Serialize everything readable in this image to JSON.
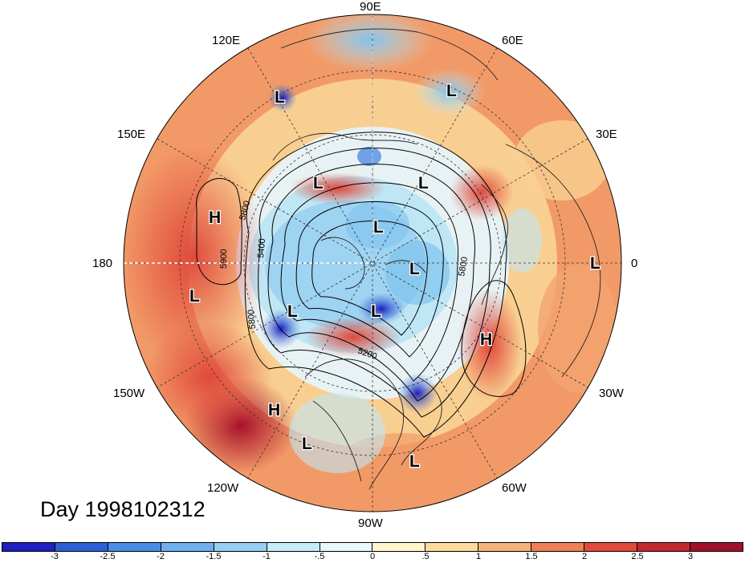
{
  "title": "Day 1998102312",
  "colors": {
    "ocean_neutral": "#fdf6d2",
    "warm_light": "#f9cf91",
    "warm_mid": "#f29a67",
    "warm_strong": "#e0493b",
    "warm_max": "#a8102a",
    "cool_light": "#bfe6f5",
    "cool_mid": "#7fc3ee",
    "cool_strong": "#3f7fe0",
    "cool_max": "#1c1dbd"
  },
  "longitude_labels": {
    "lon_90e": "90E",
    "lon_120e": "120E",
    "lon_60e": "60E",
    "lon_150e": "150E",
    "lon_30e": "30E",
    "lon_180": "180",
    "lon_0": "0",
    "lon_150w": "150W",
    "lon_30w": "30W",
    "lon_120w": "120W",
    "lon_60w": "60W",
    "lon_90w": "90W"
  },
  "contour_labels": [
    "5800",
    "5400",
    "5900",
    "5800",
    "5200",
    "5800"
  ],
  "pressure_systems": [
    {
      "label": "L",
      "kind": "low"
    },
    {
      "label": "L",
      "kind": "low"
    },
    {
      "label": "L",
      "kind": "low"
    },
    {
      "label": "L",
      "kind": "low"
    },
    {
      "label": "L",
      "kind": "low"
    },
    {
      "label": "L",
      "kind": "low"
    },
    {
      "label": "L",
      "kind": "low"
    },
    {
      "label": "L",
      "kind": "low"
    },
    {
      "label": "L",
      "kind": "low"
    },
    {
      "label": "L",
      "kind": "low"
    },
    {
      "label": "L",
      "kind": "low"
    },
    {
      "label": "L",
      "kind": "low"
    },
    {
      "label": "H",
      "kind": "high"
    },
    {
      "label": "H",
      "kind": "high"
    },
    {
      "label": "H",
      "kind": "high"
    }
  ],
  "colorbar": {
    "ticks": [
      "-3",
      "-2.5",
      "-2",
      "-1.5",
      "-1",
      "-.5",
      "0",
      ".5",
      "1",
      "1.5",
      "2",
      "2.5",
      "3"
    ],
    "colors": [
      "#1f1fc3",
      "#2d5fd8",
      "#4a8de8",
      "#6fb0f0",
      "#98cff5",
      "#c6ecf8",
      "#e9f8fb",
      "#fff6d0",
      "#fbdc9d",
      "#f6b278",
      "#f08055",
      "#e34a3a",
      "#c52630",
      "#a0102a"
    ]
  }
}
